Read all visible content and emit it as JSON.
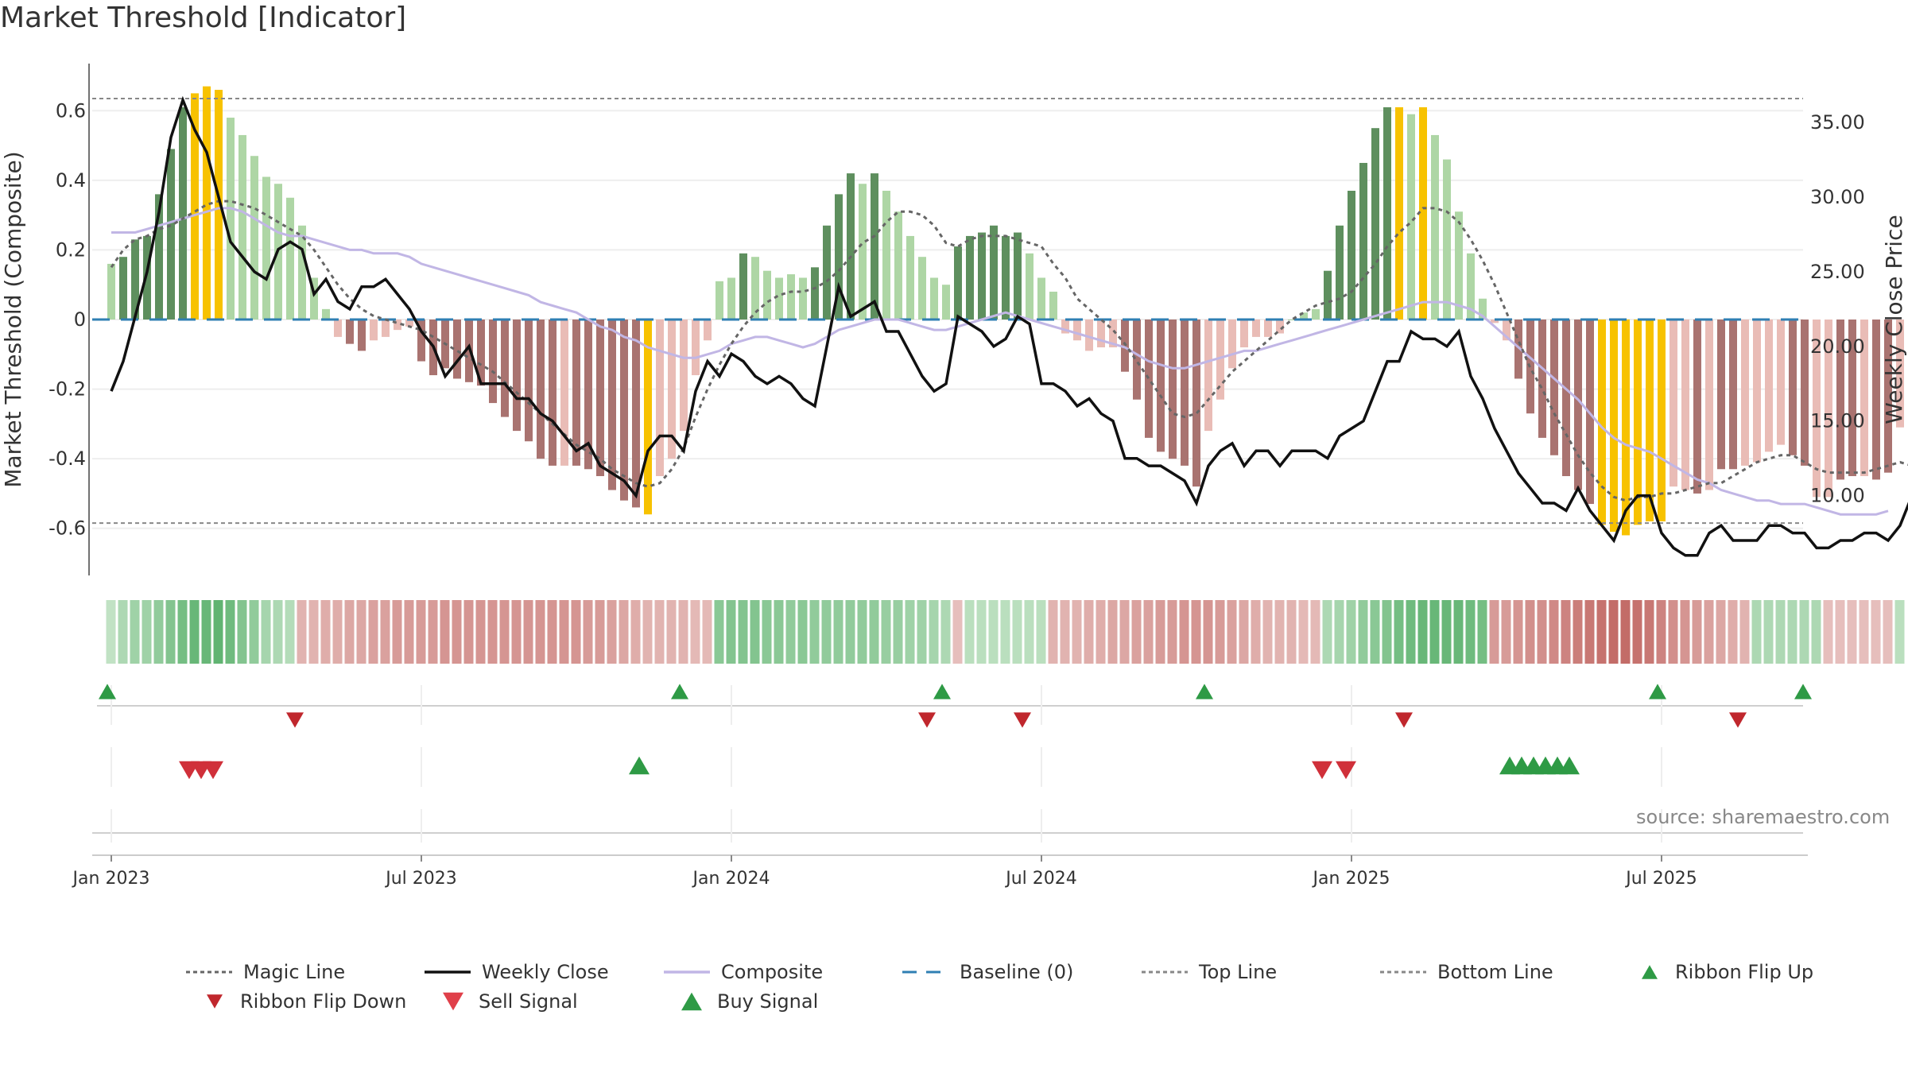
{
  "title": "Market Threshold [Indicator]",
  "source_text": "source: sharemaestro.com",
  "colors": {
    "bar_green_dark": "#5e8f5e",
    "bar_green_light": "#aed6a5",
    "bar_red_dark": "#a97370",
    "bar_red_light": "#e9bcb6",
    "bar_gold": "#f7c200",
    "close_line": "#111111",
    "composite_line": "#c1b6e5",
    "magic_line": "#666666",
    "baseline": "#2f7fb3",
    "ref_line": "#888888",
    "signal_up": "#2e9a45",
    "signal_down": "#d0303a"
  },
  "chart_data": {
    "type": "bar",
    "ylabel_left": "Market Threshold (Composite)",
    "ylabel_right": "Weekly Close Price",
    "ylim_left": [
      -0.74,
      0.74
    ],
    "ylim_right": [
      4.55,
      39.05
    ],
    "yticks_left": [
      0.6,
      0.4,
      0.2,
      0,
      -0.2,
      -0.4,
      -0.6
    ],
    "ytick_labels_left": [
      "0.6",
      "0.4",
      "0.2",
      "0",
      "-0.2",
      "-0.4",
      "-0.6"
    ],
    "yticks_right": [
      35,
      30,
      25,
      20,
      15,
      10
    ],
    "ytick_labels_right": [
      "35.00",
      "30.00",
      "25.00",
      "20.00",
      "15.00",
      "10.00"
    ],
    "top_line": 0.635,
    "bottom_line": -0.585,
    "x_ticks": [
      0,
      26,
      52,
      78,
      104,
      130
    ],
    "x_tick_labels": [
      "Jan 2023",
      "Jul 2023",
      "Jan 2024",
      "Jul 2024",
      "Jan 2025",
      "Jul 2025"
    ],
    "weeks": 144,
    "composite_bars": [
      0.16,
      0.18,
      0.23,
      0.24,
      0.36,
      0.49,
      0.61,
      0.65,
      0.67,
      0.66,
      0.58,
      0.53,
      0.47,
      0.41,
      0.39,
      0.35,
      0.27,
      0.12,
      0.03,
      -0.05,
      -0.07,
      -0.09,
      -0.06,
      -0.05,
      -0.03,
      -0.02,
      -0.12,
      -0.16,
      -0.14,
      -0.17,
      -0.18,
      -0.19,
      -0.24,
      -0.28,
      -0.32,
      -0.35,
      -0.4,
      -0.42,
      -0.42,
      -0.42,
      -0.43,
      -0.45,
      -0.49,
      -0.52,
      -0.54,
      -0.56,
      -0.45,
      -0.4,
      -0.32,
      -0.16,
      -0.06,
      0.11,
      0.12,
      0.19,
      0.18,
      0.14,
      0.12,
      0.13,
      0.12,
      0.15,
      0.27,
      0.36,
      0.42,
      0.39,
      0.42,
      0.37,
      0.31,
      0.24,
      0.18,
      0.12,
      0.1,
      0.21,
      0.24,
      0.25,
      0.27,
      0.24,
      0.25,
      0.19,
      0.12,
      0.08,
      -0.04,
      -0.06,
      -0.09,
      -0.08,
      -0.08,
      -0.15,
      -0.23,
      -0.34,
      -0.38,
      -0.4,
      -0.42,
      -0.48,
      -0.32,
      -0.23,
      -0.14,
      -0.08,
      -0.05,
      -0.05,
      -0.04,
      0.0,
      0.02,
      0.03,
      0.14,
      0.27,
      0.37,
      0.45,
      0.55,
      0.61,
      0.61,
      0.59,
      0.61,
      0.53,
      0.46,
      0.31,
      0.19,
      0.06,
      -0.01,
      -0.06,
      -0.17,
      -0.27,
      -0.34,
      -0.39,
      -0.45,
      -0.49,
      -0.53,
      -0.59,
      -0.61,
      -0.62,
      -0.59,
      -0.58,
      -0.58,
      -0.48,
      -0.49,
      -0.5,
      -0.49,
      -0.43,
      -0.43,
      -0.42,
      -0.41,
      -0.38,
      -0.36,
      -0.39,
      -0.42,
      -0.51,
      -0.51,
      -0.46,
      -0.45,
      -0.45,
      -0.46,
      -0.44,
      -0.31,
      -0.28
    ],
    "bar_colors": [
      "l",
      "d",
      "d",
      "d",
      "d",
      "d",
      "d",
      "g",
      "g",
      "g",
      "l",
      "l",
      "l",
      "l",
      "l",
      "l",
      "l",
      "l",
      "l",
      "lr",
      "dr",
      "dr",
      "lr",
      "lr",
      "lr",
      "lr",
      "dr",
      "dr",
      "dr",
      "dr",
      "dr",
      "dr",
      "dr",
      "dr",
      "dr",
      "dr",
      "dr",
      "dr",
      "lr",
      "dr",
      "dr",
      "dr",
      "dr",
      "dr",
      "dr",
      "g",
      "lr",
      "lr",
      "lr",
      "lr",
      "lr",
      "l",
      "l",
      "d",
      "l",
      "l",
      "l",
      "l",
      "l",
      "d",
      "d",
      "d",
      "d",
      "l",
      "d",
      "l",
      "l",
      "l",
      "l",
      "l",
      "l",
      "d",
      "d",
      "d",
      "d",
      "d",
      "d",
      "l",
      "l",
      "l",
      "lr",
      "lr",
      "lr",
      "lr",
      "lr",
      "dr",
      "dr",
      "dr",
      "dr",
      "dr",
      "dr",
      "dr",
      "lr",
      "lr",
      "lr",
      "lr",
      "lr",
      "lr",
      "lr",
      "l",
      "l",
      "l",
      "d",
      "d",
      "d",
      "d",
      "d",
      "d",
      "g",
      "l",
      "g",
      "l",
      "l",
      "l",
      "l",
      "l",
      "lr",
      "lr",
      "dr",
      "dr",
      "dr",
      "dr",
      "dr",
      "dr",
      "dr",
      "g",
      "g",
      "g",
      "g",
      "g",
      "g",
      "lr",
      "lr",
      "dr",
      "lr",
      "dr",
      "dr",
      "lr",
      "lr",
      "lr",
      "lr",
      "dr",
      "dr",
      "lr",
      "lr",
      "dr",
      "dr",
      "lr",
      "dr",
      "dr",
      "lr"
    ],
    "weekly_close": [
      17.0,
      19.0,
      22.0,
      25.0,
      29.0,
      34.0,
      36.5,
      34.5,
      33.0,
      30.0,
      27.0,
      26.0,
      25.0,
      24.5,
      26.5,
      27.0,
      26.5,
      23.5,
      24.5,
      23.0,
      22.5,
      24.0,
      24.0,
      24.5,
      23.5,
      22.5,
      21.0,
      20.0,
      18.0,
      19.0,
      20.0,
      17.5,
      17.5,
      17.5,
      16.5,
      16.5,
      15.5,
      15.0,
      14.0,
      13.0,
      13.5,
      12.0,
      11.5,
      11.0,
      10.0,
      13.0,
      14.0,
      14.0,
      13.0,
      17.0,
      19.0,
      18.0,
      19.5,
      19.0,
      18.0,
      17.5,
      18.0,
      17.5,
      16.5,
      16.0,
      20.0,
      24.0,
      22.0,
      22.5,
      23.0,
      21.0,
      21.0,
      19.5,
      18.0,
      17.0,
      17.5,
      22.0,
      21.5,
      21.0,
      20.0,
      20.5,
      22.0,
      21.5,
      17.5,
      17.5,
      17.0,
      16.0,
      16.5,
      15.5,
      15.0,
      12.5,
      12.5,
      12.0,
      12.0,
      11.5,
      11.0,
      9.5,
      12.0,
      13.0,
      13.5,
      12.0,
      13.0,
      13.0,
      12.0,
      13.0,
      13.0,
      13.0,
      12.5,
      14.0,
      14.5,
      15.0,
      17.0,
      19.0,
      19.0,
      21.0,
      20.5,
      20.5,
      20.0,
      21.0,
      18.0,
      16.5,
      14.5,
      13.0,
      11.5,
      10.5,
      9.5,
      9.5,
      9.0,
      10.5,
      9.0,
      8.0,
      7.0,
      9.0,
      10.0,
      10.0,
      7.5,
      6.5,
      6.0,
      6.0,
      7.5,
      8.0,
      7.0,
      7.0,
      7.0,
      8.0,
      8.0,
      7.5,
      7.5,
      6.5,
      6.5,
      7.0,
      7.0,
      7.5,
      7.5,
      7.0,
      8.0,
      10.0
    ],
    "composite_line": [
      0.25,
      0.25,
      0.25,
      0.26,
      0.27,
      0.28,
      0.29,
      0.3,
      0.31,
      0.32,
      0.32,
      0.31,
      0.29,
      0.27,
      0.25,
      0.24,
      0.24,
      0.23,
      0.22,
      0.21,
      0.2,
      0.2,
      0.19,
      0.19,
      0.19,
      0.18,
      0.16,
      0.15,
      0.14,
      0.13,
      0.12,
      0.11,
      0.1,
      0.09,
      0.08,
      0.07,
      0.05,
      0.04,
      0.03,
      0.02,
      0.0,
      -0.02,
      -0.03,
      -0.05,
      -0.06,
      -0.08,
      -0.09,
      -0.1,
      -0.11,
      -0.11,
      -0.1,
      -0.09,
      -0.07,
      -0.06,
      -0.05,
      -0.05,
      -0.06,
      -0.07,
      -0.08,
      -0.07,
      -0.05,
      -0.03,
      -0.02,
      -0.01,
      0.0,
      0.0,
      0.0,
      -0.01,
      -0.02,
      -0.03,
      -0.03,
      -0.02,
      -0.01,
      0.0,
      0.01,
      0.02,
      0.01,
      0.0,
      -0.01,
      -0.02,
      -0.03,
      -0.04,
      -0.05,
      -0.06,
      -0.07,
      -0.08,
      -0.1,
      -0.12,
      -0.13,
      -0.14,
      -0.14,
      -0.13,
      -0.12,
      -0.11,
      -0.1,
      -0.09,
      -0.09,
      -0.08,
      -0.07,
      -0.06,
      -0.05,
      -0.04,
      -0.03,
      -0.02,
      -0.01,
      0.0,
      0.01,
      0.02,
      0.03,
      0.04,
      0.05,
      0.05,
      0.05,
      0.04,
      0.03,
      0.01,
      -0.02,
      -0.05,
      -0.08,
      -0.11,
      -0.14,
      -0.17,
      -0.2,
      -0.23,
      -0.27,
      -0.31,
      -0.34,
      -0.36,
      -0.37,
      -0.38,
      -0.4,
      -0.42,
      -0.44,
      -0.46,
      -0.47,
      -0.49,
      -0.5,
      -0.51,
      -0.52,
      -0.52,
      -0.53,
      -0.53,
      -0.53,
      -0.54,
      -0.55,
      -0.56,
      -0.56,
      -0.56,
      -0.56,
      -0.55
    ],
    "magic_line": [
      0.15,
      0.2,
      0.23,
      0.24,
      0.26,
      0.27,
      0.29,
      0.31,
      0.33,
      0.34,
      0.34,
      0.33,
      0.32,
      0.3,
      0.28,
      0.26,
      0.24,
      0.2,
      0.15,
      0.1,
      0.06,
      0.03,
      0.01,
      0.0,
      -0.01,
      -0.02,
      -0.03,
      -0.05,
      -0.07,
      -0.09,
      -0.11,
      -0.13,
      -0.15,
      -0.18,
      -0.21,
      -0.24,
      -0.27,
      -0.3,
      -0.33,
      -0.36,
      -0.38,
      -0.4,
      -0.43,
      -0.45,
      -0.47,
      -0.48,
      -0.47,
      -0.43,
      -0.37,
      -0.28,
      -0.2,
      -0.13,
      -0.07,
      -0.02,
      0.02,
      0.05,
      0.07,
      0.08,
      0.08,
      0.09,
      0.11,
      0.14,
      0.18,
      0.22,
      0.24,
      0.28,
      0.31,
      0.31,
      0.3,
      0.27,
      0.22,
      0.21,
      0.23,
      0.24,
      0.24,
      0.24,
      0.23,
      0.22,
      0.21,
      0.16,
      0.12,
      0.06,
      0.03,
      0.0,
      -0.03,
      -0.07,
      -0.12,
      -0.17,
      -0.22,
      -0.27,
      -0.28,
      -0.27,
      -0.23,
      -0.19,
      -0.15,
      -0.12,
      -0.09,
      -0.06,
      -0.03,
      0.0,
      0.02,
      0.04,
      0.05,
      0.06,
      0.08,
      0.12,
      0.16,
      0.21,
      0.25,
      0.28,
      0.32,
      0.32,
      0.31,
      0.28,
      0.23,
      0.17,
      0.1,
      0.02,
      -0.06,
      -0.14,
      -0.2,
      -0.27,
      -0.33,
      -0.39,
      -0.44,
      -0.48,
      -0.51,
      -0.52,
      -0.51,
      -0.51,
      -0.5,
      -0.5,
      -0.49,
      -0.48,
      -0.47,
      -0.47,
      -0.45,
      -0.43,
      -0.41,
      -0.4,
      -0.39,
      -0.39,
      -0.41,
      -0.43,
      -0.44,
      -0.44,
      -0.44,
      -0.44,
      -0.43,
      -0.42,
      -0.41,
      -0.42
    ],
    "ribbon": [
      0.15,
      0.3,
      0.4,
      0.4,
      0.5,
      0.6,
      0.7,
      0.8,
      0.8,
      0.85,
      0.75,
      0.6,
      0.5,
      0.35,
      0.3,
      0.25,
      -0.3,
      -0.3,
      -0.35,
      -0.35,
      -0.4,
      -0.4,
      -0.45,
      -0.45,
      -0.5,
      -0.5,
      -0.5,
      -0.5,
      -0.55,
      -0.55,
      -0.55,
      -0.55,
      -0.55,
      -0.55,
      -0.55,
      -0.55,
      -0.55,
      -0.55,
      -0.55,
      -0.55,
      -0.5,
      -0.5,
      -0.45,
      -0.4,
      -0.35,
      -0.3,
      -0.3,
      -0.3,
      -0.3,
      -0.25,
      -0.25,
      0.55,
      0.6,
      0.6,
      0.6,
      0.55,
      0.55,
      0.5,
      0.55,
      0.5,
      0.5,
      0.5,
      0.5,
      0.5,
      0.5,
      0.45,
      0.45,
      0.4,
      0.4,
      0.35,
      0.3,
      -0.2,
      0.2,
      0.2,
      0.2,
      0.2,
      0.2,
      0.2,
      0.2,
      -0.3,
      -0.3,
      -0.3,
      -0.35,
      -0.35,
      -0.4,
      -0.4,
      -0.45,
      -0.45,
      -0.5,
      -0.5,
      -0.55,
      -0.55,
      -0.55,
      -0.5,
      -0.45,
      -0.4,
      -0.35,
      -0.3,
      -0.3,
      -0.3,
      -0.25,
      -0.25,
      0.3,
      0.35,
      0.4,
      0.5,
      0.55,
      0.6,
      0.7,
      0.75,
      0.8,
      0.8,
      0.8,
      0.8,
      0.75,
      0.7,
      -0.5,
      -0.5,
      -0.55,
      -0.6,
      -0.6,
      -0.65,
      -0.7,
      -0.75,
      -0.8,
      -0.85,
      -0.9,
      -0.9,
      -0.85,
      -0.8,
      -0.7,
      -0.6,
      -0.55,
      -0.5,
      -0.45,
      -0.4,
      -0.35,
      -0.3,
      0.3,
      0.3,
      0.3,
      0.3,
      0.3,
      0.3,
      -0.2,
      -0.2,
      -0.2,
      -0.2,
      -0.2,
      -0.2,
      0.2
    ],
    "ribbon_flip_up_weeks": [
      0,
      48,
      70,
      92,
      130,
      142.2
    ],
    "ribbon_flip_down_weeks": [
      15,
      68,
      76,
      108,
      136
    ],
    "buy_signal_weeks": [
      44,
      117,
      118,
      119,
      120,
      121,
      122
    ],
    "sell_signal_weeks": [
      6,
      7,
      8,
      101,
      103
    ],
    "legend": [
      {
        "label": "Magic Line",
        "kind": "dotted",
        "color": "#666666"
      },
      {
        "label": "Weekly Close",
        "kind": "solid",
        "color": "#111111"
      },
      {
        "label": "Composite",
        "kind": "solid",
        "color": "#c1b6e5"
      },
      {
        "label": "Baseline (0)",
        "kind": "dashed",
        "color": "#2f7fb3"
      },
      {
        "label": "Top Line",
        "kind": "dotted",
        "color": "#888888"
      },
      {
        "label": "Bottom Line",
        "kind": "dotted",
        "color": "#888888"
      },
      {
        "label": "Ribbon Flip Up",
        "kind": "tri-up",
        "color": "#2e9a45"
      },
      {
        "label": "Ribbon Flip Down",
        "kind": "tri-down",
        "color": "#c0272d"
      },
      {
        "label": "Sell Signal",
        "kind": "tri-down-big",
        "color": "#e0404a"
      },
      {
        "label": "Buy Signal",
        "kind": "tri-up-big",
        "color": "#2e9a45"
      }
    ]
  }
}
